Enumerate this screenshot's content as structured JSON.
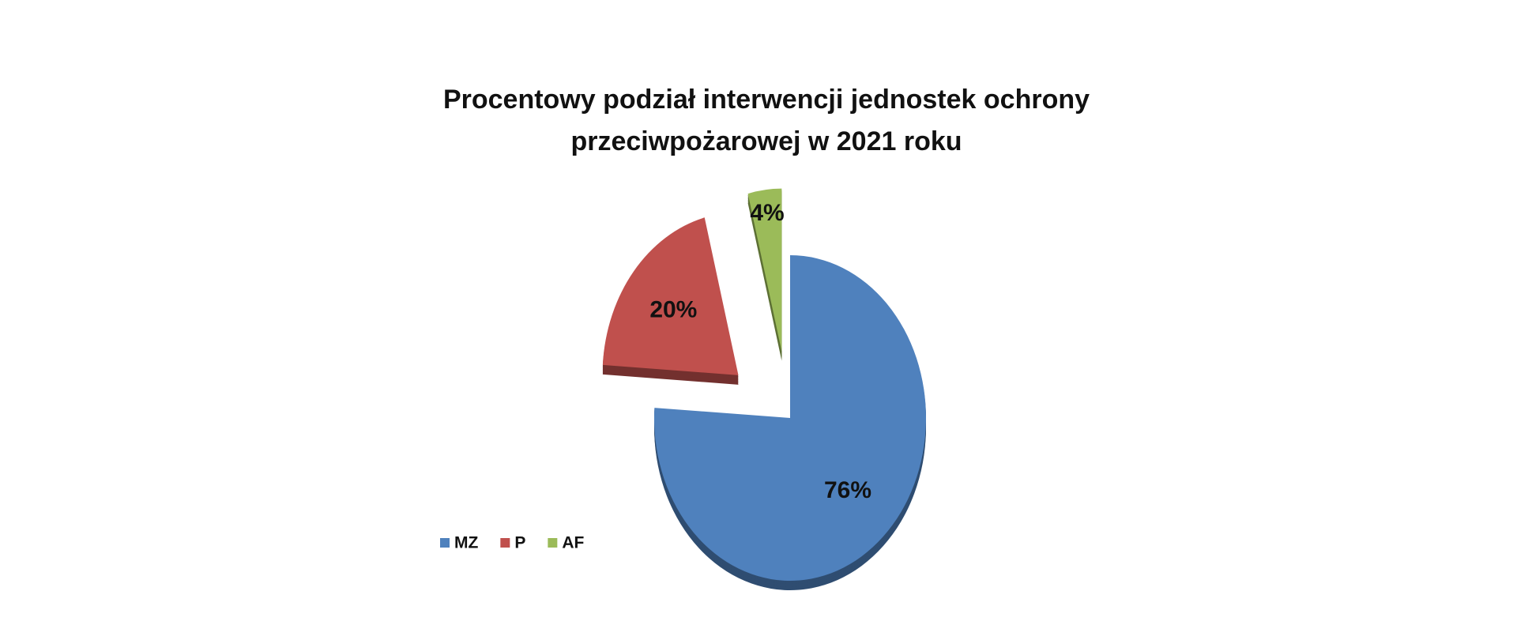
{
  "chart_data": {
    "type": "pie",
    "title": "Procentowy podział interwencji jednostek ochrony przeciwpożarowej w 2021 roku",
    "categories": [
      "MZ",
      "P",
      "AF"
    ],
    "values": [
      76,
      20,
      4
    ],
    "value_labels": [
      "76%",
      "20%",
      "4%"
    ],
    "colors": [
      "#4f81bd",
      "#c0504d",
      "#9bbb59"
    ],
    "legend": "bottom-left"
  }
}
